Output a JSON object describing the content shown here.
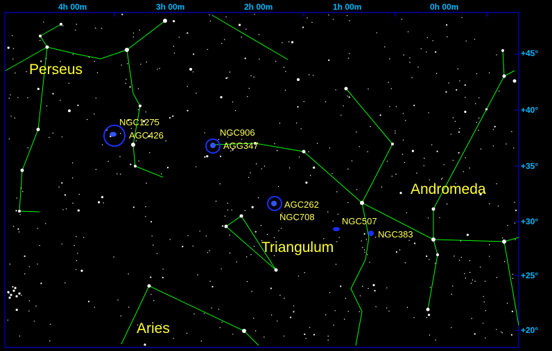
{
  "ra_axis": [
    "4h 00m",
    "3h 00m",
    "2h 00m",
    "1h 00m",
    "0h 00m"
  ],
  "dec_axis": [
    "+45°",
    "+40°",
    "+35°",
    "+30°",
    "+25°",
    "+20°"
  ],
  "constellations": {
    "perseus": "Perseus",
    "andromeda": "Andromeda",
    "triangulum": "Triangulum",
    "aries": "Aries"
  },
  "objects": {
    "ngc1275": "NGC1275",
    "agc426": "AGC426",
    "ngc906": "NGC906",
    "agg347": "AGG347",
    "agc262": "AGC262",
    "ngc708": "NGC708",
    "ngc507": "NGC507",
    "ngc383": "NGC383"
  },
  "colors": {
    "background": "#000000",
    "frame": "#0000ff",
    "axis_text": "#00b8ff",
    "constellation_lines": "#00ff00",
    "labels": "#ffff33",
    "object_markers": "#0033ff",
    "stars": "#ffffff"
  }
}
